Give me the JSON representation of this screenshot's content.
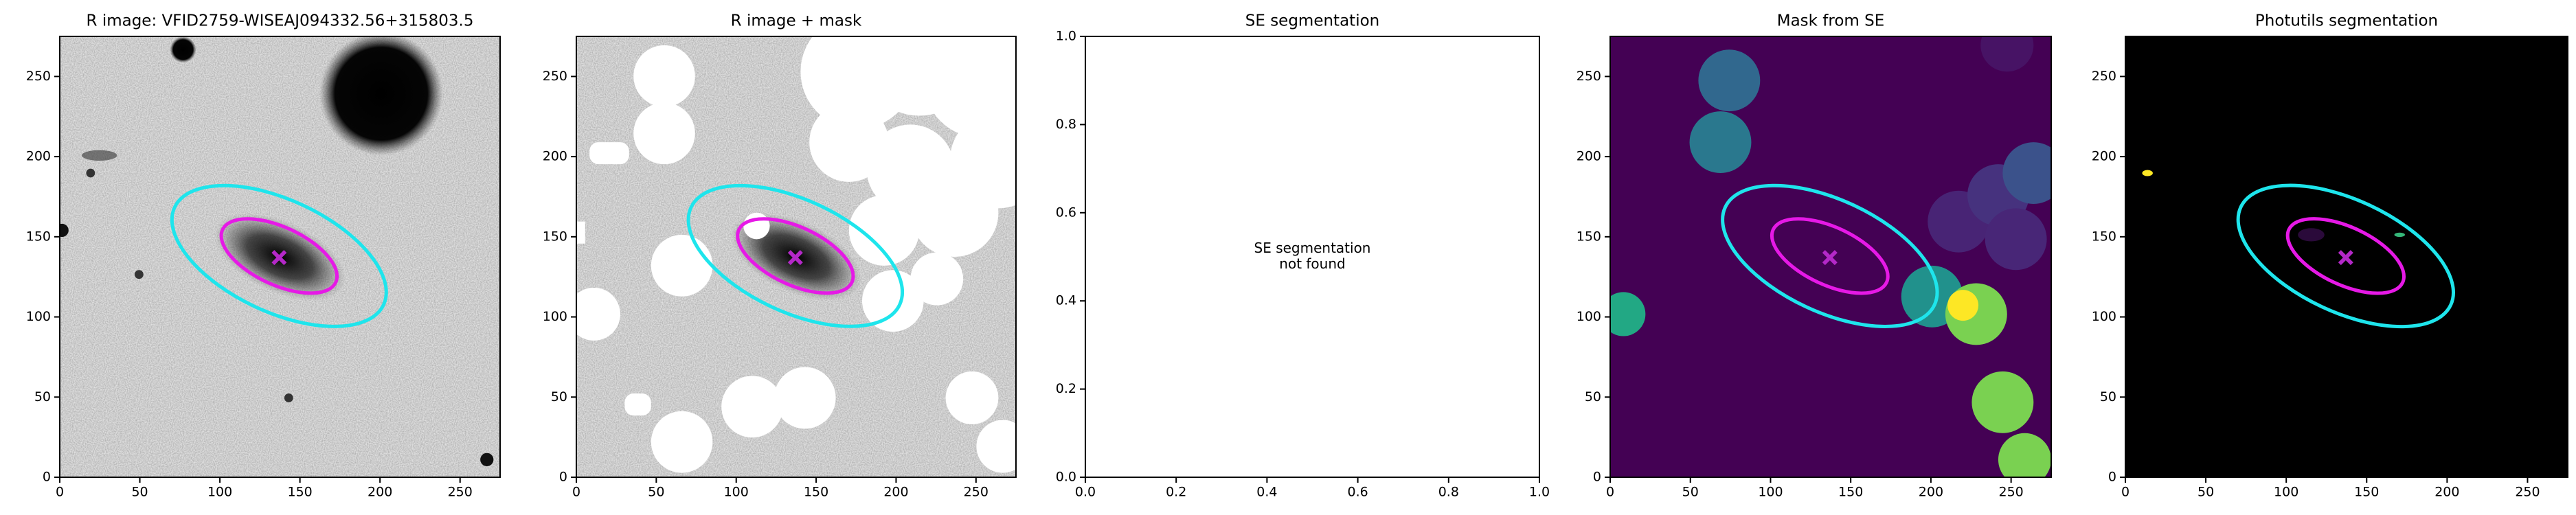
{
  "chart_data": [
    {
      "type": "image",
      "title": "R image: VFID2759-WISEAJ094332.56+315803.5",
      "xlim": [
        0,
        275
      ],
      "ylim": [
        0,
        275
      ],
      "xticks": [
        0,
        50,
        100,
        150,
        200,
        250
      ],
      "yticks": [
        0,
        50,
        100,
        150,
        200,
        250
      ],
      "ellipses": [
        {
          "x": 137,
          "y": 138,
          "width": 144,
          "height": 70,
          "angle": -25,
          "color": "#1ee5ec"
        },
        {
          "x": 137,
          "y": 138,
          "width": 78,
          "height": 36,
          "angle": -25,
          "color": "#e619e6"
        }
      ],
      "marker": {
        "x": 137,
        "y": 137,
        "color": "#b428c8"
      }
    },
    {
      "type": "image",
      "title": "R image + mask",
      "xlim": [
        0,
        275
      ],
      "ylim": [
        0,
        275
      ],
      "xticks": [
        0,
        50,
        100,
        150,
        200,
        250
      ],
      "yticks": [
        0,
        50,
        100,
        150,
        200,
        250
      ],
      "ellipses": [
        {
          "x": 137,
          "y": 138,
          "width": 144,
          "height": 70,
          "angle": -25,
          "color": "#1ee5ec"
        },
        {
          "x": 137,
          "y": 138,
          "width": 78,
          "height": 36,
          "angle": -25,
          "color": "#e619e6"
        }
      ],
      "marker": {
        "x": 137,
        "y": 137,
        "color": "#b428c8"
      }
    },
    {
      "type": "empty",
      "title": "SE segmentation",
      "xlim": [
        0,
        1
      ],
      "ylim": [
        0,
        1
      ],
      "xticks": [
        {
          "value": 0,
          "label": "0.0"
        },
        {
          "value": 0.2,
          "label": "0.2"
        },
        {
          "value": 0.4,
          "label": "0.4"
        },
        {
          "value": 0.6,
          "label": "0.6"
        },
        {
          "value": 0.8,
          "label": "0.8"
        },
        {
          "value": 1,
          "label": "1.0"
        }
      ],
      "yticks": [
        {
          "value": 0,
          "label": "0.0"
        },
        {
          "value": 0.2,
          "label": "0.2"
        },
        {
          "value": 0.4,
          "label": "0.4"
        },
        {
          "value": 0.6,
          "label": "0.6"
        },
        {
          "value": 0.8,
          "label": "0.8"
        },
        {
          "value": 1,
          "label": "1.0"
        }
      ],
      "annotation": [
        "SE segmentation",
        "not found"
      ]
    },
    {
      "type": "image",
      "title": "Mask from SE",
      "xlim": [
        0,
        275
      ],
      "ylim": [
        0,
        275
      ],
      "xticks": [
        0,
        50,
        100,
        150,
        200,
        250
      ],
      "yticks": [
        0,
        50,
        100,
        150,
        200,
        250
      ],
      "ellipses": [
        {
          "x": 137,
          "y": 138,
          "width": 144,
          "height": 70,
          "angle": -25,
          "color": "#1ee5ec"
        },
        {
          "x": 137,
          "y": 138,
          "width": 78,
          "height": 36,
          "angle": -25,
          "color": "#e619e6"
        }
      ],
      "marker": {
        "x": 137,
        "y": 137,
        "color": "#b428c8"
      }
    },
    {
      "type": "image",
      "title": "Photutils segmentation",
      "xlim": [
        0,
        275
      ],
      "ylim": [
        0,
        275
      ],
      "xticks": [
        0,
        50,
        100,
        150,
        200,
        250
      ],
      "yticks": [
        0,
        50,
        100,
        150,
        200,
        250
      ],
      "ellipses": [
        {
          "x": 137,
          "y": 138,
          "width": 144,
          "height": 70,
          "angle": -25,
          "color": "#1ee5ec"
        },
        {
          "x": 137,
          "y": 138,
          "width": 78,
          "height": 36,
          "angle": -25,
          "color": "#e619e6"
        }
      ],
      "marker": {
        "x": 137,
        "y": 137,
        "color": "#b428c8"
      }
    }
  ]
}
